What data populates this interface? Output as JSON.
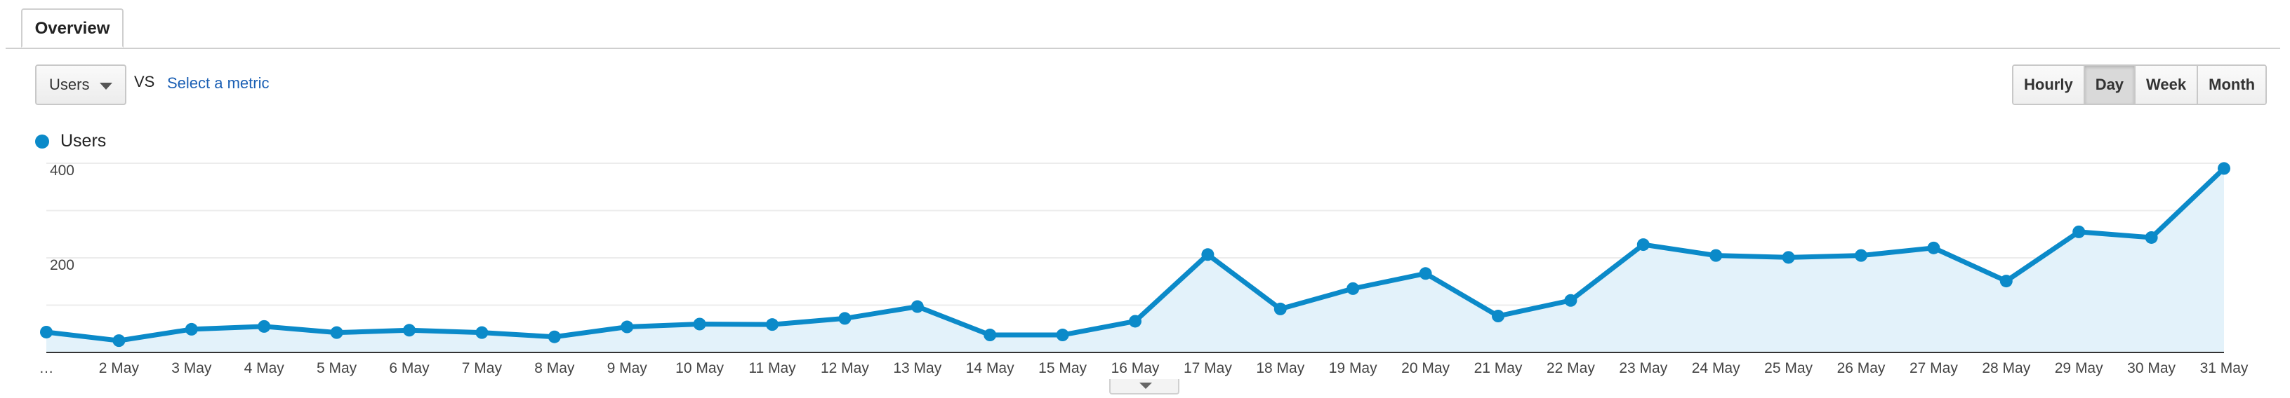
{
  "tabs": [
    {
      "label": "Overview"
    }
  ],
  "controls": {
    "metric_label": "Users",
    "vs_label": "VS",
    "select_metric_label": "Select a metric",
    "granularity": [
      "Hourly",
      "Day",
      "Week",
      "Month"
    ],
    "active_granularity": "Day"
  },
  "legend": {
    "label": "Users",
    "color": "#0b8ac9"
  },
  "chart_data": {
    "type": "line",
    "x": [
      "…",
      "2 May",
      "3 May",
      "4 May",
      "5 May",
      "6 May",
      "7 May",
      "8 May",
      "9 May",
      "10 May",
      "11 May",
      "12 May",
      "13 May",
      "14 May",
      "15 May",
      "16 May",
      "17 May",
      "18 May",
      "19 May",
      "20 May",
      "21 May",
      "22 May",
      "23 May",
      "24 May",
      "25 May",
      "26 May",
      "27 May",
      "28 May",
      "29 May",
      "30 May",
      "31 May"
    ],
    "series": [
      {
        "name": "Users",
        "color": "#0b8ac9",
        "values": [
          43,
          25,
          49,
          55,
          42,
          47,
          42,
          33,
          54,
          60,
          59,
          72,
          97,
          37,
          37,
          66,
          207,
          92,
          135,
          167,
          77,
          110,
          228,
          205,
          201,
          205,
          221,
          151,
          255,
          243,
          389
        ]
      }
    ],
    "yticks": [
      200,
      400
    ],
    "ylim": [
      0,
      400
    ],
    "grid": true,
    "legend_position": "top-left"
  }
}
